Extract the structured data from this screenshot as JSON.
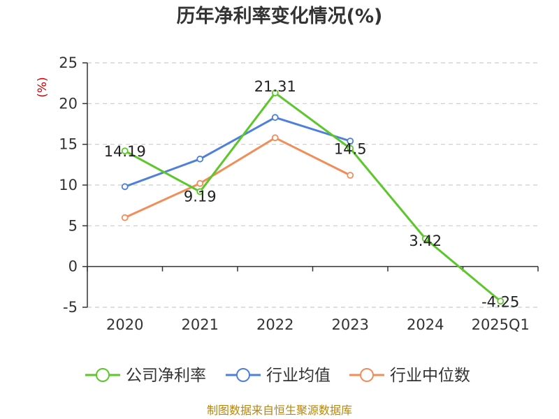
{
  "chart_data": {
    "type": "line",
    "title": "历年净利率变化情况(%)",
    "ylabel": "(%)",
    "categories": [
      "2020",
      "2021",
      "2022",
      "2023",
      "2024",
      "2025Q1"
    ],
    "ylim": [
      -5,
      25
    ],
    "yticks": [
      25,
      20,
      15,
      10,
      5,
      0,
      -5
    ],
    "grid": true,
    "legend_position": "bottom",
    "series": [
      {
        "name": "公司净利率",
        "color": "#5cc72a",
        "values": [
          14.19,
          9.19,
          21.31,
          14.5,
          3.42,
          -4.25
        ],
        "labels": [
          "14.19",
          "9.19",
          "21.31",
          "14.5",
          "3.42",
          "-4.25"
        ]
      },
      {
        "name": "行业均值",
        "color": "#4f7fdc",
        "values": [
          9.8,
          13.2,
          18.3,
          15.4,
          null,
          null
        ]
      },
      {
        "name": "行业中位数",
        "color": "#f28d5a",
        "values": [
          6.0,
          10.2,
          15.8,
          11.2,
          null,
          null
        ]
      }
    ]
  },
  "source": "制图数据来自恒生聚源数据库"
}
